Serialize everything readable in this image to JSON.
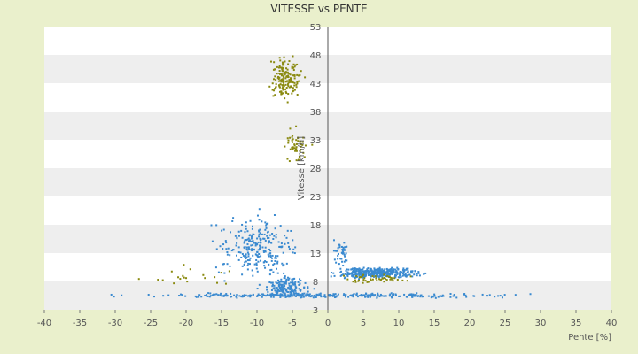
{
  "chart_data": {
    "type": "scatter",
    "title": "VITESSE vs PENTE",
    "xlabel": "Pente [%]",
    "ylabel": "Vitesse [km/h]",
    "xlim": [
      -40,
      40
    ],
    "ylim": [
      3,
      53
    ],
    "x_ticks": [
      -40,
      -35,
      -30,
      -25,
      -20,
      -15,
      -10,
      -5,
      0,
      5,
      10,
      15,
      20,
      25,
      30,
      35,
      40
    ],
    "y_ticks": [
      3,
      8,
      13,
      18,
      23,
      28,
      33,
      38,
      43,
      48,
      53
    ],
    "grid": true,
    "band_colors": [
      "#ffffff",
      "#eeeeee"
    ],
    "background": "#eaf0cc",
    "series": [
      {
        "color": "#3a8ad0",
        "clusters": [
          {
            "x_center": 0,
            "x_spread": 40,
            "y_center": 5.5,
            "y_spread": 0.6,
            "n": 320
          },
          {
            "x_center": 7,
            "x_spread": 9,
            "y_center": 9.5,
            "y_spread": 1.6,
            "n": 380
          },
          {
            "x_center": -10,
            "x_spread": 9,
            "y_center": 14,
            "y_spread": 8,
            "n": 260
          },
          {
            "x_center": -6,
            "x_spread": 5,
            "y_center": 7,
            "y_spread": 3,
            "n": 160
          },
          {
            "x_center": 2,
            "x_spread": 2,
            "y_center": 13,
            "y_spread": 4,
            "n": 40
          }
        ]
      },
      {
        "color": "#8a8a10",
        "clusters": [
          {
            "x_center": -6,
            "x_spread": 3.5,
            "y_center": 44,
            "y_spread": 6,
            "n": 170
          },
          {
            "x_center": -4.5,
            "x_spread": 3,
            "y_center": 32,
            "y_spread": 5,
            "n": 50
          },
          {
            "x_center": 7,
            "x_spread": 8,
            "y_center": 8.5,
            "y_spread": 1.2,
            "n": 50
          },
          {
            "x_center": -20,
            "x_spread": 12,
            "y_center": 9,
            "y_spread": 3,
            "n": 20
          }
        ]
      }
    ]
  }
}
